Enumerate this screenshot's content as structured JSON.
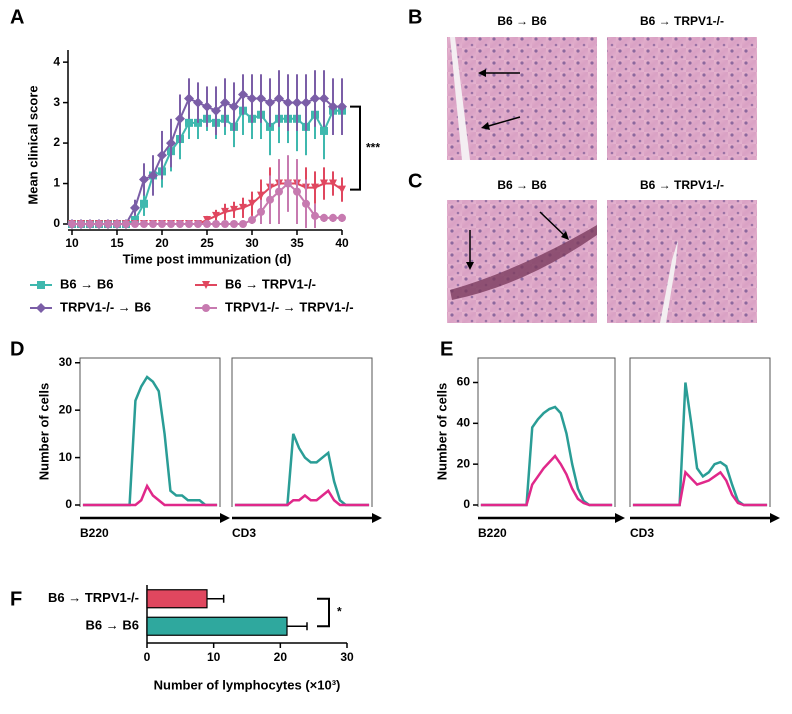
{
  "panel_labels": [
    "A",
    "B",
    "C",
    "D",
    "E",
    "F"
  ],
  "histology": [
    {
      "titles": [
        "B6 → B6",
        "B6 → TRPV1-/-"
      ]
    },
    {
      "titles": [
        "B6 → B6",
        "B6 → TRPV1-/-"
      ]
    }
  ],
  "chart_data": [
    {
      "type": "line",
      "ylabel": "Mean clinical score",
      "xlabel": "Time post immunization (d)",
      "x": [
        10,
        11,
        12,
        13,
        14,
        15,
        16,
        17,
        18,
        19,
        20,
        21,
        22,
        23,
        24,
        25,
        26,
        27,
        28,
        29,
        30,
        31,
        32,
        33,
        34,
        35,
        36,
        37,
        38,
        39,
        40
      ],
      "xlim": [
        10,
        40
      ],
      "xticks": [
        10,
        15,
        20,
        25,
        30,
        35,
        40
      ],
      "ylim": [
        0,
        4.3
      ],
      "yticks": [
        0,
        1,
        2,
        3,
        4
      ],
      "annotation": "***",
      "series": [
        {
          "name": "B6 → B6",
          "color": "#3fb8ae",
          "marker": "square",
          "values": [
            0,
            0,
            0,
            0,
            0,
            0,
            0,
            0.1,
            0.5,
            1.2,
            1.3,
            1.8,
            2.1,
            2.5,
            2.5,
            2.6,
            2.5,
            2.6,
            2.4,
            2.8,
            2.6,
            2.7,
            2.4,
            2.6,
            2.6,
            2.6,
            2.4,
            2.7,
            2.3,
            2.8,
            2.8
          ],
          "errors": [
            0,
            0,
            0,
            0,
            0,
            0,
            0,
            0,
            0.3,
            0.4,
            0.4,
            0.5,
            0.5,
            0.4,
            0.4,
            0.3,
            0.4,
            0.4,
            0.5,
            0.6,
            0.5,
            0.6,
            0.7,
            0.6,
            0.6,
            0.8,
            0.7,
            0.6,
            0.7,
            0.5,
            0.4
          ]
        },
        {
          "name": "TRPV1-/- → B6",
          "color": "#7b5ea7",
          "marker": "diamond",
          "values": [
            0,
            0,
            0,
            0,
            0,
            0,
            0,
            0.4,
            1.1,
            1.2,
            1.7,
            2.0,
            2.6,
            3.1,
            3.0,
            2.9,
            2.8,
            3.0,
            2.9,
            3.2,
            3.1,
            3.1,
            3.0,
            3.1,
            3.0,
            3.0,
            3.0,
            3.1,
            3.1,
            2.9,
            2.9
          ],
          "errors": [
            0,
            0,
            0,
            0,
            0,
            0,
            0,
            0.2,
            0.4,
            0.5,
            0.6,
            0.6,
            0.6,
            0.5,
            0.5,
            0.5,
            0.6,
            0.6,
            0.6,
            0.5,
            0.6,
            0.6,
            0.6,
            0.7,
            0.7,
            0.7,
            0.7,
            0.7,
            0.7,
            0.7,
            0.7
          ]
        },
        {
          "name": "B6 → TRPV1-/-",
          "color": "#e0475f",
          "marker": "triangle-down",
          "values": [
            0,
            0,
            0,
            0,
            0,
            0,
            0,
            0,
            0,
            0,
            0,
            0,
            0,
            0,
            0,
            0.1,
            0.2,
            0.3,
            0.35,
            0.4,
            0.5,
            0.7,
            0.9,
            1.0,
            1.0,
            1.0,
            0.9,
            0.9,
            1.0,
            1.0,
            0.85
          ],
          "errors": [
            0,
            0,
            0,
            0,
            0,
            0,
            0,
            0,
            0,
            0,
            0,
            0,
            0,
            0,
            0,
            0.1,
            0.15,
            0.2,
            0.2,
            0.25,
            0.3,
            0.4,
            0.5,
            0.6,
            0.6,
            0.6,
            0.5,
            0.4,
            0.4,
            0.3,
            0.3
          ]
        },
        {
          "name": "TRPV1-/- → TRPV1-/-",
          "color": "#c77ab0",
          "marker": "circle",
          "values": [
            0,
            0,
            0,
            0,
            0,
            0,
            0,
            0,
            0,
            0,
            0,
            0,
            0,
            0,
            0,
            0,
            0,
            0,
            0,
            0,
            0.1,
            0.3,
            0.6,
            0.8,
            1.0,
            0.8,
            0.5,
            0.2,
            0.15,
            0.15,
            0.15
          ],
          "errors": [
            0,
            0,
            0,
            0,
            0,
            0,
            0,
            0,
            0,
            0,
            0,
            0,
            0,
            0,
            0,
            0,
            0,
            0,
            0,
            0,
            0.1,
            0.3,
            0.6,
            0.8,
            0.7,
            0.8,
            0.6,
            0.3,
            0.1,
            0.1,
            0.1
          ]
        }
      ]
    },
    {
      "type": "line",
      "ylabel": "Number of cells",
      "xlabel": "B220",
      "categories": [
        null,
        null,
        null,
        null,
        null,
        null,
        null,
        null,
        null,
        null,
        null,
        null,
        null,
        null,
        null,
        null,
        null,
        null,
        null,
        null,
        null,
        null,
        null,
        null
      ],
      "ylim": [
        0,
        31
      ],
      "yticks": [
        0,
        10,
        20,
        30
      ],
      "series": [
        {
          "color": "#2a9d96",
          "values": [
            0,
            0,
            0,
            0,
            0,
            0,
            0,
            0,
            0,
            22,
            25,
            27,
            26,
            24,
            15,
            3,
            2,
            2,
            1,
            1,
            1,
            0,
            0,
            0
          ]
        },
        {
          "color": "#e0288a",
          "values": [
            0,
            0,
            0,
            0,
            0,
            0,
            0,
            0,
            0,
            0,
            1,
            4,
            2,
            1,
            0,
            0,
            0,
            0,
            0,
            0,
            0,
            0,
            0,
            0
          ]
        }
      ]
    },
    {
      "type": "line",
      "xlabel": "CD3",
      "categories": [
        null,
        null,
        null,
        null,
        null,
        null,
        null,
        null,
        null,
        null,
        null,
        null,
        null,
        null,
        null,
        null,
        null,
        null,
        null,
        null,
        null,
        null,
        null,
        null
      ],
      "ylim": [
        0,
        31
      ],
      "series": [
        {
          "color": "#2a9d96",
          "values": [
            0,
            0,
            0,
            0,
            0,
            0,
            0,
            0,
            0,
            0,
            15,
            12,
            10,
            9,
            9,
            10,
            11,
            5,
            1,
            0,
            0,
            0,
            0,
            0
          ]
        },
        {
          "color": "#e0288a",
          "values": [
            0,
            0,
            0,
            0,
            0,
            0,
            0,
            0,
            0,
            0,
            1,
            1,
            2,
            1,
            1,
            2,
            3,
            1,
            0,
            0,
            0,
            0,
            0,
            0
          ]
        }
      ]
    },
    {
      "type": "line",
      "ylabel": "Number of cells",
      "xlabel": "B220",
      "categories": [
        null,
        null,
        null,
        null,
        null,
        null,
        null,
        null,
        null,
        null,
        null,
        null,
        null,
        null,
        null,
        null,
        null,
        null,
        null,
        null,
        null,
        null,
        null,
        null
      ],
      "ylim": [
        0,
        72
      ],
      "yticks": [
        0,
        20,
        40,
        60
      ],
      "series": [
        {
          "color": "#2a9d96",
          "values": [
            0,
            0,
            0,
            0,
            0,
            0,
            0,
            0,
            0,
            38,
            42,
            45,
            47,
            48,
            45,
            35,
            20,
            8,
            2,
            0,
            0,
            0,
            0,
            0
          ]
        },
        {
          "color": "#e0288a",
          "values": [
            0,
            0,
            0,
            0,
            0,
            0,
            0,
            0,
            0,
            10,
            14,
            18,
            21,
            24,
            20,
            15,
            8,
            3,
            1,
            0,
            0,
            0,
            0,
            0
          ]
        }
      ]
    },
    {
      "type": "line",
      "xlabel": "CD3",
      "categories": [
        null,
        null,
        null,
        null,
        null,
        null,
        null,
        null,
        null,
        null,
        null,
        null,
        null,
        null,
        null,
        null,
        null,
        null,
        null,
        null,
        null,
        null,
        null,
        null
      ],
      "ylim": [
        0,
        72
      ],
      "series": [
        {
          "color": "#2a9d96",
          "values": [
            0,
            0,
            0,
            0,
            0,
            0,
            0,
            0,
            0,
            60,
            40,
            18,
            14,
            16,
            20,
            21,
            19,
            10,
            2,
            0,
            0,
            0,
            0,
            0
          ]
        },
        {
          "color": "#e0288a",
          "values": [
            0,
            0,
            0,
            0,
            0,
            0,
            0,
            0,
            0,
            16,
            13,
            10,
            11,
            12,
            14,
            16,
            12,
            5,
            1,
            0,
            0,
            0,
            0,
            0
          ]
        }
      ]
    },
    {
      "type": "hbar",
      "categories": [
        "B6 → TRPV1-/-",
        "B6 → B6"
      ],
      "values": [
        9,
        21
      ],
      "errors": [
        2.5,
        3
      ],
      "colors": [
        "#e0475f",
        "#2fa89e"
      ],
      "xlim": [
        0,
        30
      ],
      "xticks": [
        0,
        10,
        20,
        30
      ],
      "xlabel": "Number of lymphocytes (×10³)",
      "annotation": "*"
    }
  ]
}
